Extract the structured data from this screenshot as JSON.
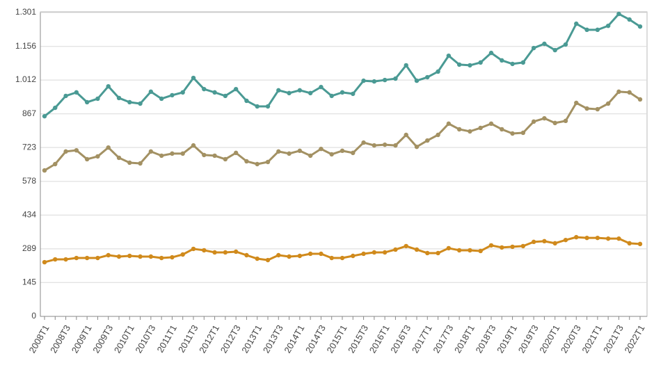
{
  "chart_data": {
    "type": "line",
    "categories": [
      "2008T1",
      null,
      "2008T3",
      null,
      "2009T1",
      null,
      "2009T3",
      null,
      "2010T1",
      null,
      "2010T3",
      null,
      "2011T1",
      null,
      "2011T3",
      null,
      "2012T1",
      null,
      "2012T3",
      null,
      "2013T1",
      null,
      "2013T3",
      null,
      "2014T1",
      null,
      "2014T3",
      null,
      "2015T1",
      null,
      "2015T3",
      null,
      "2016T1",
      null,
      "2016T3",
      null,
      "2017T1",
      null,
      "2017T3",
      null,
      "2018T1",
      null,
      "2018T3",
      null,
      "2019T1",
      null,
      "2019T3",
      null,
      "2020T1",
      null,
      "2020T3",
      null,
      "2021T1",
      null,
      "2021T3",
      null,
      "2022T1"
    ],
    "series": [
      {
        "color": "#4a9a94",
        "values": [
          857,
          893,
          944,
          959,
          917,
          932,
          985,
          935,
          917,
          911,
          962,
          932,
          947,
          959,
          1021,
          973,
          959,
          944,
          973,
          923,
          899,
          899,
          968,
          956,
          968,
          956,
          982,
          944,
          959,
          953,
          1009,
          1006,
          1012,
          1018,
          1075,
          1009,
          1024,
          1048,
          1116,
          1078,
          1075,
          1087,
          1128,
          1096,
          1081,
          1087,
          1149,
          1167,
          1140,
          1164,
          1253,
          1227,
          1227,
          1244,
          1295,
          1271,
          1241
        ]
      },
      {
        "color": "#a39163",
        "values": [
          625,
          652,
          706,
          711,
          673,
          685,
          723,
          679,
          658,
          655,
          706,
          688,
          697,
          697,
          732,
          691,
          688,
          673,
          700,
          664,
          652,
          661,
          706,
          697,
          709,
          688,
          717,
          694,
          709,
          700,
          744,
          732,
          735,
          732,
          777,
          726,
          753,
          777,
          825,
          801,
          792,
          807,
          825,
          801,
          783,
          786,
          834,
          848,
          828,
          837,
          914,
          890,
          887,
          911,
          962,
          959,
          929
        ]
      },
      {
        "color": "#d08a1c",
        "values": [
          232,
          244,
          244,
          250,
          250,
          250,
          262,
          256,
          259,
          256,
          256,
          250,
          253,
          265,
          289,
          283,
          274,
          274,
          277,
          262,
          247,
          241,
          262,
          256,
          259,
          268,
          268,
          250,
          250,
          259,
          268,
          274,
          274,
          286,
          301,
          286,
          271,
          271,
          292,
          283,
          283,
          280,
          304,
          295,
          298,
          301,
          319,
          322,
          313,
          327,
          339,
          336,
          336,
          333,
          333,
          313,
          310
        ]
      }
    ],
    "ylim": [
      0,
      1301
    ],
    "yticks": [
      0,
      145,
      289,
      434,
      578,
      723,
      867,
      {
        "value": 1012,
        "label": "1.012"
      },
      {
        "value": 1156,
        "label": "1.156"
      },
      {
        "value": 1301,
        "label": "1.301"
      }
    ],
    "grid": true
  }
}
